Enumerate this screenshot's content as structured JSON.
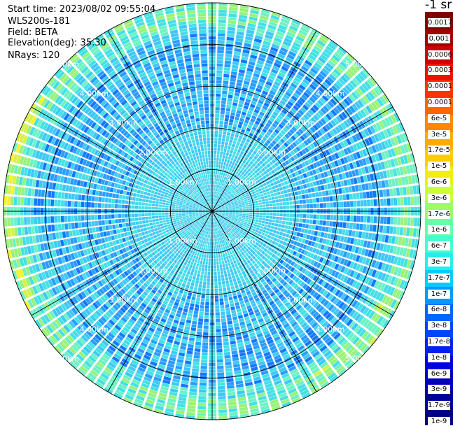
{
  "info": {
    "start_time": "Start time: 2023/08/02 09:55:04",
    "instrument": "WLS200s-181",
    "field": "Field: BETA",
    "elevation": "Elevation(deg): 35.30",
    "nrays": "NRays: 120"
  },
  "unit_label": "-1 sr",
  "range_rings": [
    {
      "value": 1,
      "label": "1.00km"
    },
    {
      "value": 2,
      "label": "2.00km"
    },
    {
      "value": 3,
      "label": "3.00km"
    },
    {
      "value": 4,
      "label": "4.00km"
    },
    {
      "value": 5,
      "label": "5.00km"
    }
  ],
  "colorbar": {
    "labels": [
      "0.0017",
      "0.001",
      "0.0006",
      "0.0003",
      "0.00017",
      "0.0001",
      "6e-5",
      "3e-5",
      "1.7e-5",
      "1e-5",
      "6e-6",
      "3e-6",
      "1.7e-6",
      "1e-6",
      "6e-7",
      "3e-7",
      "1.7e-7",
      "1e-7",
      "6e-8",
      "3e-8",
      "1.7e-8",
      "1e-8",
      "6e-9",
      "3e-9",
      "1.7e-9",
      "1e-9"
    ],
    "colors": [
      "#800000",
      "#a00000",
      "#cc0000",
      "#ee1100",
      "#ff3300",
      "#ff6600",
      "#ff8800",
      "#ffaa00",
      "#ffcc00",
      "#eeee11",
      "#ccff33",
      "#99ff66",
      "#66ffaa",
      "#44ffcc",
      "#22eeee",
      "#00ccff",
      "#0099ff",
      "#0066ff",
      "#0044ff",
      "#0022ee",
      "#0000dd",
      "#0000bb",
      "#000099",
      "#000080"
    ]
  },
  "scan": {
    "bin_colors": [
      "#0a5ff2",
      "#1478ff",
      "#2a9cff",
      "#3fc8f5",
      "#44e0e6",
      "#6cf2c4",
      "#99f279",
      "#d8f04a",
      "#f7f229"
    ]
  }
}
